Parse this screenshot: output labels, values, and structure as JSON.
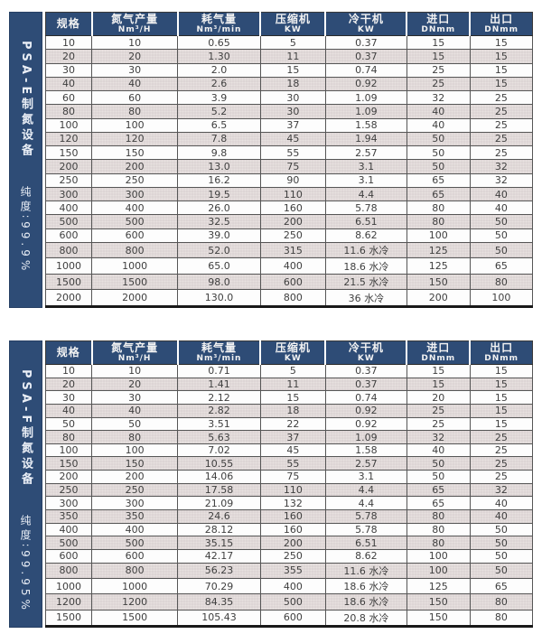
{
  "colors": {
    "navy": "#2e4c76",
    "stripe": "#e8e2e0",
    "grid": "#565656",
    "text": "#3f3f3f",
    "header_text": "#f2f2f2"
  },
  "tables": [
    {
      "side_title": "PSA-E制氮设备",
      "side_purity": "纯度∶99.9%",
      "columns": [
        {
          "label": "规格",
          "unit": ""
        },
        {
          "label": "氮气产量",
          "unit": "Nm³/H"
        },
        {
          "label": "耗气量",
          "unit": "Nm³/min"
        },
        {
          "label": "压缩机",
          "unit": "KW"
        },
        {
          "label": "冷干机",
          "unit": "KW"
        },
        {
          "label": "进口",
          "unit": "DNmm"
        },
        {
          "label": "出口",
          "unit": "DNmm"
        }
      ],
      "rows": [
        [
          "10",
          "10",
          "0.65",
          "5",
          "0.37",
          "15",
          "15"
        ],
        [
          "20",
          "20",
          "1.30",
          "11",
          "0.37",
          "15",
          "15"
        ],
        [
          "30",
          "30",
          "2.0",
          "15",
          "0.74",
          "25",
          "15"
        ],
        [
          "40",
          "40",
          "2.6",
          "18",
          "0.92",
          "25",
          "15"
        ],
        [
          "60",
          "60",
          "3.9",
          "30",
          "1.09",
          "32",
          "25"
        ],
        [
          "80",
          "80",
          "5.2",
          "30",
          "1.09",
          "40",
          "25"
        ],
        [
          "100",
          "100",
          "6.5",
          "37",
          "1.58",
          "40",
          "25"
        ],
        [
          "120",
          "120",
          "7.8",
          "45",
          "1.94",
          "50",
          "25"
        ],
        [
          "150",
          "150",
          "9.8",
          "55",
          "2.57",
          "50",
          "25"
        ],
        [
          "200",
          "200",
          "13.0",
          "75",
          "3.1",
          "50",
          "32"
        ],
        [
          "250",
          "250",
          "16.2",
          "90",
          "3.1",
          "65",
          "32"
        ],
        [
          "300",
          "300",
          "19.5",
          "110",
          "4.4",
          "65",
          "40"
        ],
        [
          "400",
          "400",
          "26.0",
          "160",
          "5.78",
          "80",
          "40"
        ],
        [
          "500",
          "500",
          "32.5",
          "200",
          "6.51",
          "80",
          "50"
        ],
        [
          "600",
          "600",
          "39.0",
          "250",
          "8.62",
          "100",
          "50"
        ],
        [
          "800",
          "800",
          "52.0",
          "315",
          "11.6 水冷",
          "125",
          "50"
        ],
        [
          "1000",
          "1000",
          "65.0",
          "400",
          "18.6 水冷",
          "125",
          "65"
        ],
        [
          "1500",
          "1500",
          "98.0",
          "600",
          "21.5 水冷",
          "150",
          "80"
        ],
        [
          "2000",
          "2000",
          "130.0",
          "800",
          "36  水冷",
          "200",
          "100"
        ]
      ]
    },
    {
      "side_title": "PSA-F制氮设备",
      "side_purity": "纯度∶99.95%",
      "columns": [
        {
          "label": "规格",
          "unit": ""
        },
        {
          "label": "氮气产量",
          "unit": "Nm³/H"
        },
        {
          "label": "耗气量",
          "unit": "Nm³/min"
        },
        {
          "label": "压缩机",
          "unit": "KW"
        },
        {
          "label": "冷干机",
          "unit": "KW"
        },
        {
          "label": "进口",
          "unit": "DNmm"
        },
        {
          "label": "出口",
          "unit": "DNmm"
        }
      ],
      "rows": [
        [
          "10",
          "10",
          "0.71",
          "5",
          "0.37",
          "15",
          "15"
        ],
        [
          "20",
          "20",
          "1.41",
          "11",
          "0.37",
          "15",
          "15"
        ],
        [
          "30",
          "30",
          "2.12",
          "15",
          "0.74",
          "20",
          "15"
        ],
        [
          "40",
          "40",
          "2.82",
          "18",
          "0.92",
          "25",
          "15"
        ],
        [
          "50",
          "50",
          "3.51",
          "22",
          "0.92",
          "25",
          "15"
        ],
        [
          "80",
          "80",
          "5.63",
          "37",
          "1.09",
          "32",
          "25"
        ],
        [
          "100",
          "100",
          "7.02",
          "45",
          "1.58",
          "40",
          "25"
        ],
        [
          "150",
          "150",
          "10.55",
          "55",
          "2.57",
          "50",
          "25"
        ],
        [
          "200",
          "200",
          "14.06",
          "75",
          "3.1",
          "50",
          "25"
        ],
        [
          "250",
          "250",
          "17.58",
          "110",
          "4.4",
          "65",
          "32"
        ],
        [
          "300",
          "300",
          "21.09",
          "132",
          "4.4",
          "65",
          "40"
        ],
        [
          "350",
          "350",
          "24.6",
          "160",
          "5.78",
          "80",
          "40"
        ],
        [
          "400",
          "400",
          "28.12",
          "160",
          "5.78",
          "80",
          "50"
        ],
        [
          "500",
          "500",
          "35.15",
          "200",
          "6.51",
          "80",
          "50"
        ],
        [
          "600",
          "600",
          "42.17",
          "250",
          "8.62",
          "100",
          "50"
        ],
        [
          "800",
          "800",
          "56.23",
          "355",
          "11.6 水冷",
          "100",
          "50"
        ],
        [
          "1000",
          "1000",
          "70.29",
          "400",
          "18.6 水冷",
          "125",
          "65"
        ],
        [
          "1200",
          "1200",
          "84.35",
          "500",
          "18.6 水冷",
          "150",
          "80"
        ],
        [
          "1500",
          "1500",
          "105.43",
          "600",
          "20.8 水冷",
          "150",
          "80"
        ]
      ]
    }
  ]
}
